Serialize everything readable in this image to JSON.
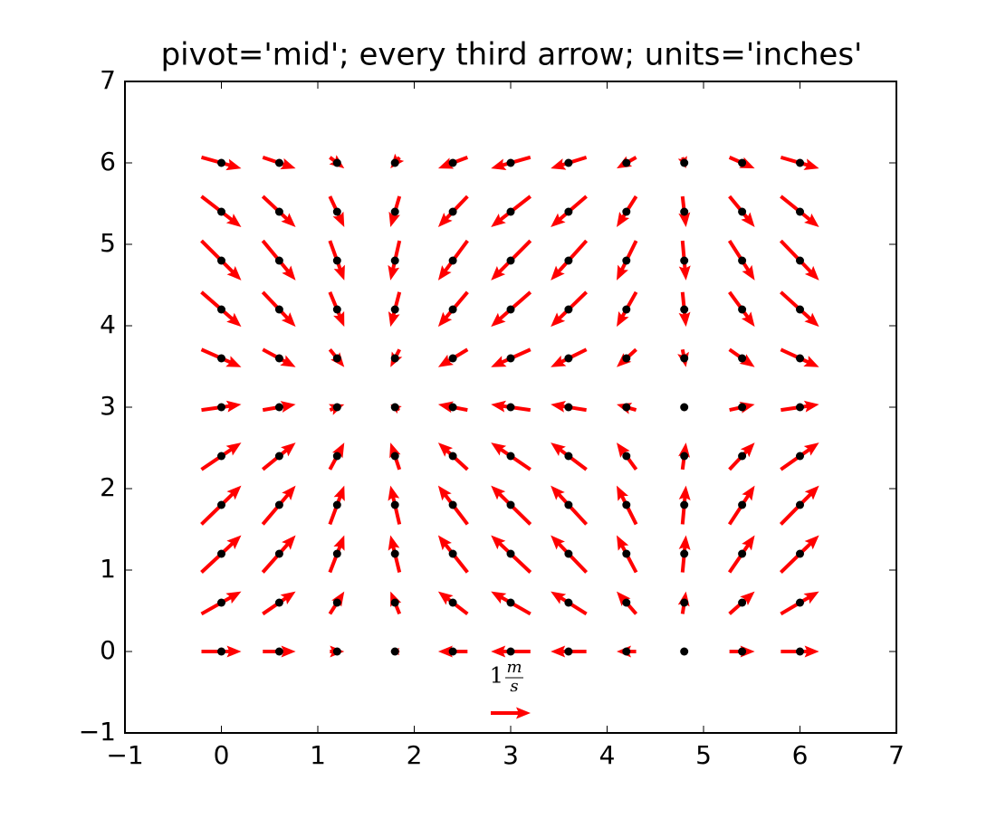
{
  "chart_data": {
    "type": "quiver",
    "title": "pivot='mid'; every third arrow; units='inches'",
    "x": [
      0,
      0.6,
      1.2,
      1.8,
      2.4,
      3.0,
      3.6,
      4.2,
      4.8,
      5.4,
      6.0
    ],
    "y": [
      0,
      0.6,
      1.2,
      1.8,
      2.4,
      3.0,
      3.6,
      4.2,
      4.8,
      5.4,
      6.0
    ],
    "u": [
      [
        1,
        0.825,
        0.362,
        -0.227,
        -0.737,
        -0.99,
        -0.897,
        -0.49,
        0.087,
        0.635,
        0.96
      ],
      [
        1,
        0.825,
        0.362,
        -0.227,
        -0.737,
        -0.99,
        -0.897,
        -0.49,
        0.087,
        0.635,
        0.96
      ],
      [
        1,
        0.825,
        0.362,
        -0.227,
        -0.737,
        -0.99,
        -0.897,
        -0.49,
        0.087,
        0.635,
        0.96
      ],
      [
        1,
        0.825,
        0.362,
        -0.227,
        -0.737,
        -0.99,
        -0.897,
        -0.49,
        0.087,
        0.635,
        0.96
      ],
      [
        1,
        0.825,
        0.362,
        -0.227,
        -0.737,
        -0.99,
        -0.897,
        -0.49,
        0.087,
        0.635,
        0.96
      ],
      [
        1,
        0.825,
        0.362,
        -0.227,
        -0.737,
        -0.99,
        -0.897,
        -0.49,
        0.087,
        0.635,
        0.96
      ],
      [
        1,
        0.825,
        0.362,
        -0.227,
        -0.737,
        -0.99,
        -0.897,
        -0.49,
        0.087,
        0.635,
        0.96
      ],
      [
        1,
        0.825,
        0.362,
        -0.227,
        -0.737,
        -0.99,
        -0.897,
        -0.49,
        0.087,
        0.635,
        0.96
      ],
      [
        1,
        0.825,
        0.362,
        -0.227,
        -0.737,
        -0.99,
        -0.897,
        -0.49,
        0.087,
        0.635,
        0.96
      ],
      [
        1,
        0.825,
        0.362,
        -0.227,
        -0.737,
        -0.99,
        -0.897,
        -0.49,
        0.087,
        0.635,
        0.96
      ],
      [
        1,
        0.825,
        0.362,
        -0.227,
        -0.737,
        -0.99,
        -0.897,
        -0.49,
        0.087,
        0.635,
        0.96
      ]
    ],
    "v": [
      [
        0,
        0,
        0,
        0,
        0,
        0,
        0,
        0,
        0,
        0,
        0
      ],
      [
        0.565,
        0.565,
        0.565,
        0.565,
        0.565,
        0.565,
        0.565,
        0.565,
        0.565,
        0.565,
        0.565
      ],
      [
        0.932,
        0.932,
        0.932,
        0.932,
        0.932,
        0.932,
        0.932,
        0.932,
        0.932,
        0.932,
        0.932
      ],
      [
        0.974,
        0.974,
        0.974,
        0.974,
        0.974,
        0.974,
        0.974,
        0.974,
        0.974,
        0.974,
        0.974
      ],
      [
        0.675,
        0.675,
        0.675,
        0.675,
        0.675,
        0.675,
        0.675,
        0.675,
        0.675,
        0.675,
        0.675
      ],
      [
        0.141,
        0.141,
        0.141,
        0.141,
        0.141,
        0.141,
        0.141,
        0.141,
        0.141,
        0.141,
        0.141
      ],
      [
        -0.443,
        -0.443,
        -0.443,
        -0.443,
        -0.443,
        -0.443,
        -0.443,
        -0.443,
        -0.443,
        -0.443,
        -0.443
      ],
      [
        -0.872,
        -0.872,
        -0.872,
        -0.872,
        -0.872,
        -0.872,
        -0.872,
        -0.872,
        -0.872,
        -0.872,
        -0.872
      ],
      [
        -0.996,
        -0.996,
        -0.996,
        -0.996,
        -0.996,
        -0.996,
        -0.996,
        -0.996,
        -0.996,
        -0.996,
        -0.996
      ],
      [
        -0.773,
        -0.773,
        -0.773,
        -0.773,
        -0.773,
        -0.773,
        -0.773,
        -0.773,
        -0.773,
        -0.773,
        -0.773
      ],
      [
        -0.279,
        -0.279,
        -0.279,
        -0.279,
        -0.279,
        -0.279,
        -0.279,
        -0.279,
        -0.279,
        -0.279,
        -0.279
      ]
    ],
    "color": "#ff0000",
    "point_color": "#000000",
    "pivot": "mid",
    "key": {
      "value": 1,
      "numerator": "m",
      "denominator": "s"
    },
    "xlim": [
      -1,
      7
    ],
    "ylim": [
      -1,
      7
    ],
    "xticks": [
      {
        "value": -1,
        "label": "−1"
      },
      0,
      1,
      2,
      3,
      4,
      5,
      6,
      7
    ],
    "yticks": [
      {
        "value": -1,
        "label": "−1"
      },
      0,
      1,
      2,
      3,
      4,
      5,
      6,
      7
    ]
  }
}
